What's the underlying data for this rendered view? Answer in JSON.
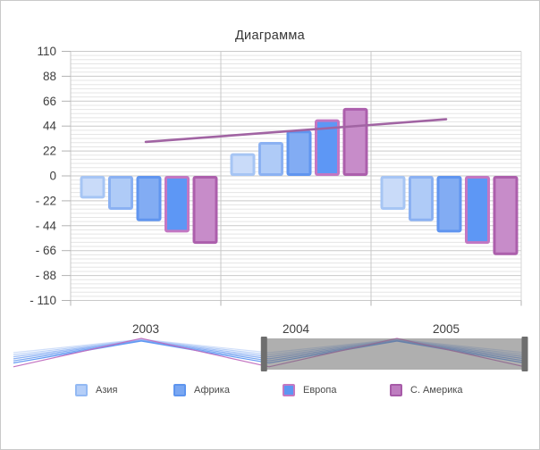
{
  "window": {
    "background": "#FFFFFF",
    "border_color": "#C9C9C9"
  },
  "chart_data": {
    "type": "bar",
    "title": "Диаграмма",
    "categories": [
      "2003",
      "2004",
      "2005"
    ],
    "series": [
      {
        "name": "Азия",
        "type": "bar",
        "values": [
          -20,
          20,
          -30
        ],
        "fill": "#C9DBF9",
        "border": "#A6C5F4"
      },
      {
        "name": "",
        "type": "bar",
        "values": [
          -30,
          30,
          -40
        ],
        "fill": "#AFCBF7",
        "border": "#8BB1F2"
      },
      {
        "name": "Африка",
        "type": "bar",
        "values": [
          -40,
          40,
          -50
        ],
        "fill": "#82ACF3",
        "border": "#6095EF"
      },
      {
        "name": "Европа",
        "type": "bar",
        "values": [
          -50,
          50,
          -60
        ],
        "fill": "#5D97F5",
        "border": "#C377C2"
      },
      {
        "name": "С. Америка",
        "type": "bar",
        "values": [
          -60,
          60,
          -70
        ],
        "fill": "#C78CC9",
        "border": "#AC5FAC"
      },
      {
        "name": "",
        "type": "line",
        "values": [
          30,
          40,
          50
        ],
        "color": "#A164A3"
      }
    ],
    "ylim": [
      -110,
      110
    ],
    "y_major_step": 22,
    "y_minor_divisions": 6,
    "y_tick_labels": [
      "110",
      "88",
      "66",
      "44",
      "22",
      "0",
      "- 22",
      "- 44",
      "- 66",
      "- 88",
      "- 110"
    ],
    "grid": {
      "minor_color": "#E5E5E5",
      "major_color": "#C9C9C9",
      "tick_color": "#B3B3B3"
    },
    "legend_position": "bottom"
  },
  "legend": {
    "items": [
      {
        "key": "asia",
        "label": "Азия",
        "fill": "#B4CEF8",
        "border": "#93B9F3"
      },
      {
        "key": "africa",
        "label": "Африка",
        "fill": "#79A7F2",
        "border": "#5E95EE"
      },
      {
        "key": "europe",
        "label": "Европа",
        "fill": "#5D96F2",
        "border": "#C478C2"
      },
      {
        "key": "n-america",
        "label": "С. Америка",
        "fill": "#BE7DC0",
        "border": "#A75BA8"
      }
    ]
  },
  "slider": {
    "points": 5,
    "selected_range_percent": [
      49,
      100
    ],
    "window_fill": "rgba(110,110,110,0.55)",
    "handle_color": "#6E6E6E",
    "shadow_line_colors": [
      "#CCDCF9",
      "#B5CDF7",
      "#9DBDF5",
      "#86ADF3",
      "#6FA0F0",
      "#5D96F2",
      "#C06CBE"
    ]
  }
}
